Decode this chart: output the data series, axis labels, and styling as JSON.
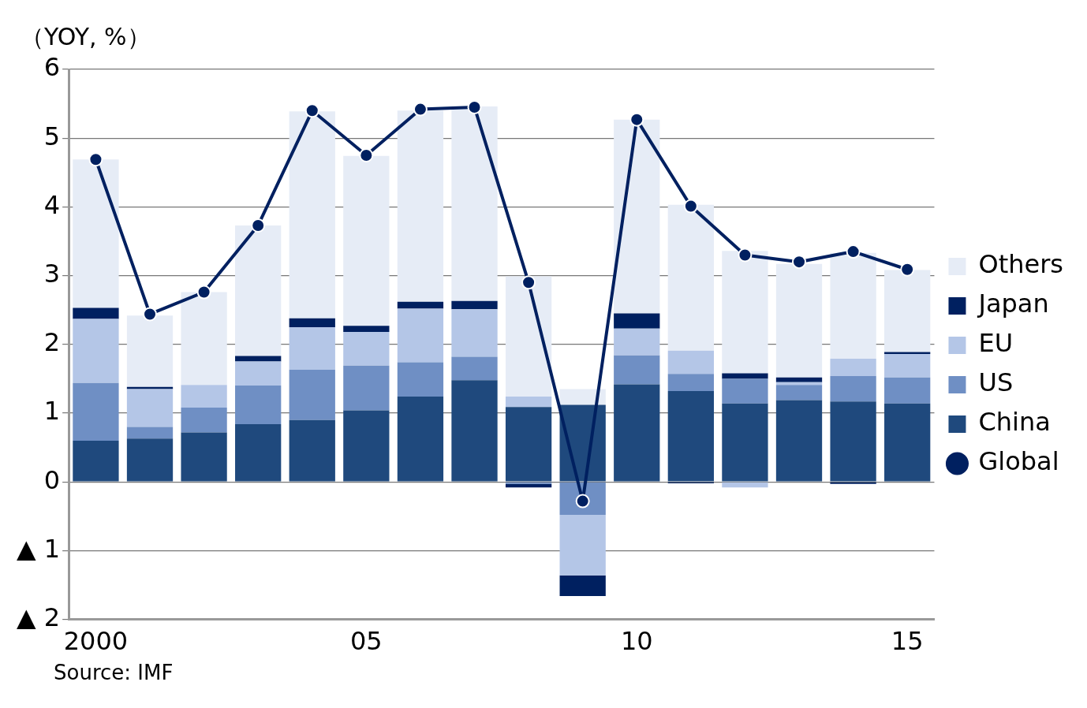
{
  "chart_data": {
    "type": "bar",
    "stacked": true,
    "ylabel": "（YOY, %）",
    "categories": [
      "2000",
      null,
      null,
      null,
      null,
      "05",
      null,
      null,
      null,
      null,
      "10",
      null,
      null,
      null,
      null,
      "15"
    ],
    "series": [
      {
        "name": "Global",
        "type": "line",
        "color": "#002060",
        "marker": "circle",
        "line_style": "solid",
        "values": [
          4.69,
          2.44,
          2.76,
          3.73,
          5.4,
          4.75,
          5.42,
          5.45,
          2.9,
          -0.28,
          5.27,
          4.01,
          3.3,
          3.2,
          3.35,
          3.09
        ]
      },
      {
        "name": "China",
        "color": "#1f497d",
        "values": [
          0.6,
          0.63,
          0.72,
          0.84,
          0.9,
          1.04,
          1.24,
          1.48,
          1.09,
          1.12,
          1.42,
          1.32,
          1.14,
          1.19,
          1.17,
          1.14
        ]
      },
      {
        "name": "US",
        "color": "#6f8fc4",
        "values": [
          0.84,
          0.17,
          0.36,
          0.56,
          0.73,
          0.65,
          0.5,
          0.34,
          -0.03,
          -0.48,
          0.42,
          0.25,
          0.36,
          0.22,
          0.37,
          0.38
        ]
      },
      {
        "name": "EU",
        "color": "#b4c6e7",
        "values": [
          0.93,
          0.55,
          0.33,
          0.35,
          0.62,
          0.49,
          0.78,
          0.69,
          0.15,
          -0.88,
          0.39,
          0.34,
          -0.08,
          0.04,
          0.25,
          0.34
        ]
      },
      {
        "name": "Japan",
        "color": "#002060",
        "values": [
          0.16,
          0.03,
          0,
          0.08,
          0.13,
          0.09,
          0.1,
          0.12,
          -0.05,
          -0.3,
          0.22,
          -0.02,
          0.08,
          0.07,
          -0.03,
          0.03
        ]
      },
      {
        "name": "Others",
        "color": "#e6ecf6",
        "values": [
          2.16,
          1.04,
          1.35,
          1.9,
          3.01,
          2.47,
          2.78,
          2.83,
          1.75,
          0.23,
          2.82,
          2.12,
          1.78,
          1.65,
          1.54,
          1.19
        ]
      }
    ],
    "ylim": [
      -2,
      6
    ],
    "yticks": [
      {
        "value": -2,
        "label": "▲ 2"
      },
      {
        "value": -1,
        "label": "▲ 1"
      },
      0,
      1,
      2,
      3,
      4,
      5,
      6
    ],
    "grid": "y",
    "legend": "right",
    "annotations": [
      "Source: IMF"
    ]
  }
}
